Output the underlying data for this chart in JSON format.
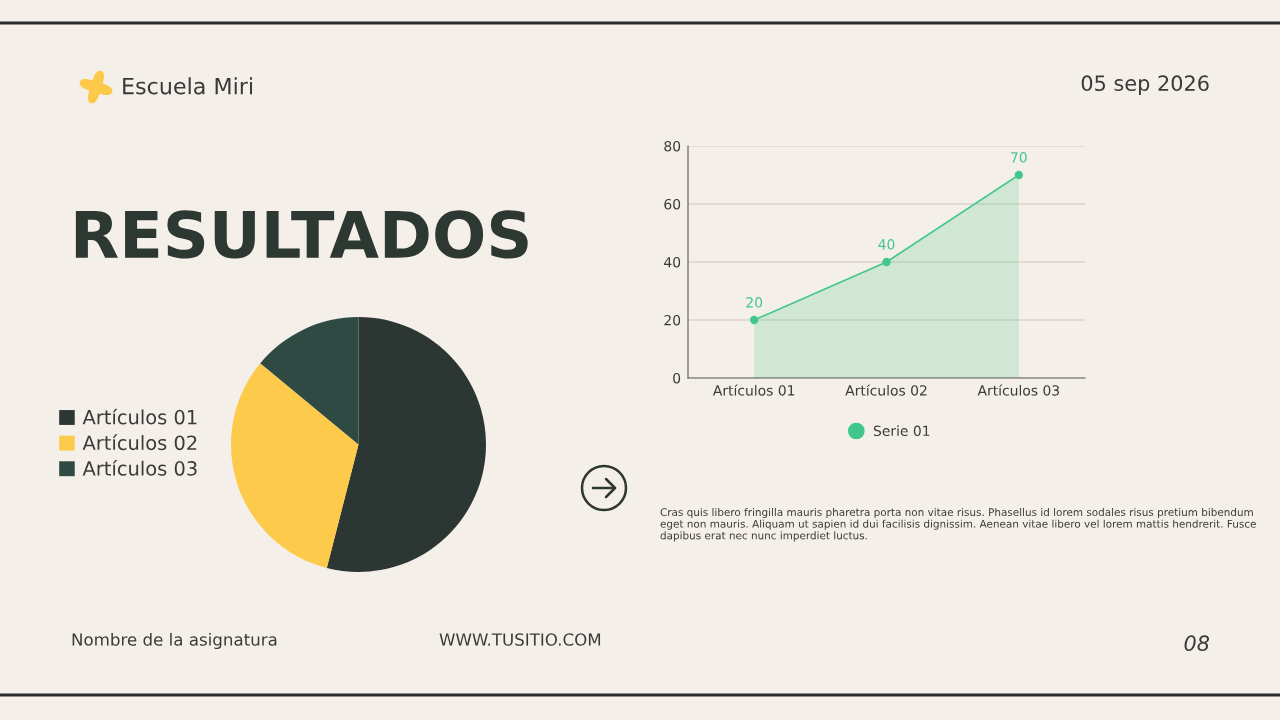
{
  "chart_data": [
    {
      "type": "pie",
      "title": "RESULTADOS",
      "categories": [
        "Artículos 01",
        "Artículos 02",
        "Artículos 03"
      ],
      "values": [
        54,
        32,
        14
      ],
      "colors": [
        "#2c3632",
        "#fdca4b",
        "#2f4a43"
      ],
      "legend": "left",
      "annotations": [
        "Escuela Miri",
        "05 sep 2026",
        "Nombre de la asignatura",
        "WWW.TUSITIO.COM",
        "08"
      ]
    },
    {
      "type": "area",
      "categories": [
        "Artículos 01",
        "Artículos 02",
        "Artículos 03"
      ],
      "series": [
        {
          "name": "Serie 01",
          "color": "#41c68e",
          "values": [
            20,
            40,
            70
          ]
        }
      ],
      "ylim": [
        0,
        80
      ],
      "yticks": [
        0,
        20,
        40,
        60,
        80
      ],
      "grid": "y",
      "legend": "bottom",
      "marker": "circle",
      "data_labels": true,
      "annotations": [
        "Cras quis libero fringilla mauris pharetra porta non vitae risus. Phasellus id lorem sodales risus pretium bibendum eget non mauris. Aliquam ut sapien id dui facilisis dignissim. Aenean vitae libero vel lorem mattis hendrerit. Fusce dapibus erat nec nunc imperdiet luctus."
      ]
    }
  ]
}
